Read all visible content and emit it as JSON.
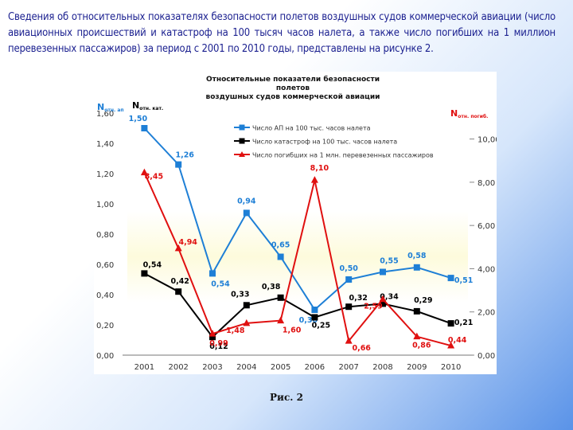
{
  "intro_text": "Сведения об относительных показателях безопасности полетов воздушных судов коммерческой авиации (число авиационных происшествий и катастроф на 100 тысяч часов налета, а также число погибших на 1 миллион перевезенных пассажиров) за период с 2001 по 2010 годы, представлены на рисунке 2.",
  "figure_caption": "Рис. 2",
  "chart_data": {
    "type": "line",
    "title_lines": [
      "Относительные показатели безопасности",
      "полетов",
      "воздушных судов коммерческой авиации"
    ],
    "categories": [
      "2001",
      "2002",
      "2003",
      "2004",
      "2005",
      "2006",
      "2007",
      "2008",
      "2009",
      "2010"
    ],
    "left_axis": {
      "label_main_1": "N",
      "label_sub_1": "отн. ап",
      "label_main_2": "N",
      "label_sub_2": "отн. кат.",
      "ylim": [
        0,
        1.6
      ],
      "ticks": [
        "0,00",
        "0,20",
        "0,40",
        "0,60",
        "0,80",
        "1,00",
        "1,20",
        "1,40",
        "1,60"
      ]
    },
    "right_axis": {
      "label_main": "N",
      "label_sub": "отн. погиб.",
      "ylim": [
        0,
        11.2
      ],
      "ticks": [
        "0,00",
        "2,00",
        "4,00",
        "6,00",
        "8,00",
        "10,00"
      ]
    },
    "series": [
      {
        "name": "Число АП на 100 тыс. часов налета",
        "color": "#1e7fd6",
        "axis": "left",
        "values": [
          1.5,
          1.26,
          0.54,
          0.94,
          0.65,
          0.3,
          0.5,
          0.55,
          0.58,
          0.51
        ],
        "labels": [
          "1,50",
          "1,26",
          "0,54",
          "0,94",
          "0,65",
          "0,30",
          "0,50",
          "0,55",
          "0,58",
          "0,51"
        ]
      },
      {
        "name": "Число катастроф на 100 тыс. часов налета",
        "color": "#000000",
        "axis": "left",
        "values": [
          0.54,
          0.42,
          0.12,
          0.33,
          0.38,
          0.25,
          0.32,
          0.34,
          0.29,
          0.21
        ],
        "labels": [
          "0,54",
          "0,42",
          "0,12",
          "0,33",
          "0,38",
          "0,25",
          "0,32",
          "0,34",
          "0,29",
          "0,21"
        ]
      },
      {
        "name": "Число погибших на 1 млн. перевезенных пассажиров",
        "color": "#e01010",
        "axis": "right",
        "values": [
          8.45,
          4.94,
          0.99,
          1.48,
          1.6,
          8.1,
          0.66,
          2.59,
          0.86,
          0.44
        ],
        "labels": [
          "8,45",
          "4,94",
          "0,99",
          "1,48",
          "1,60",
          "8,10",
          "0,66",
          "2,59",
          "0,86",
          "0,44"
        ]
      }
    ]
  }
}
